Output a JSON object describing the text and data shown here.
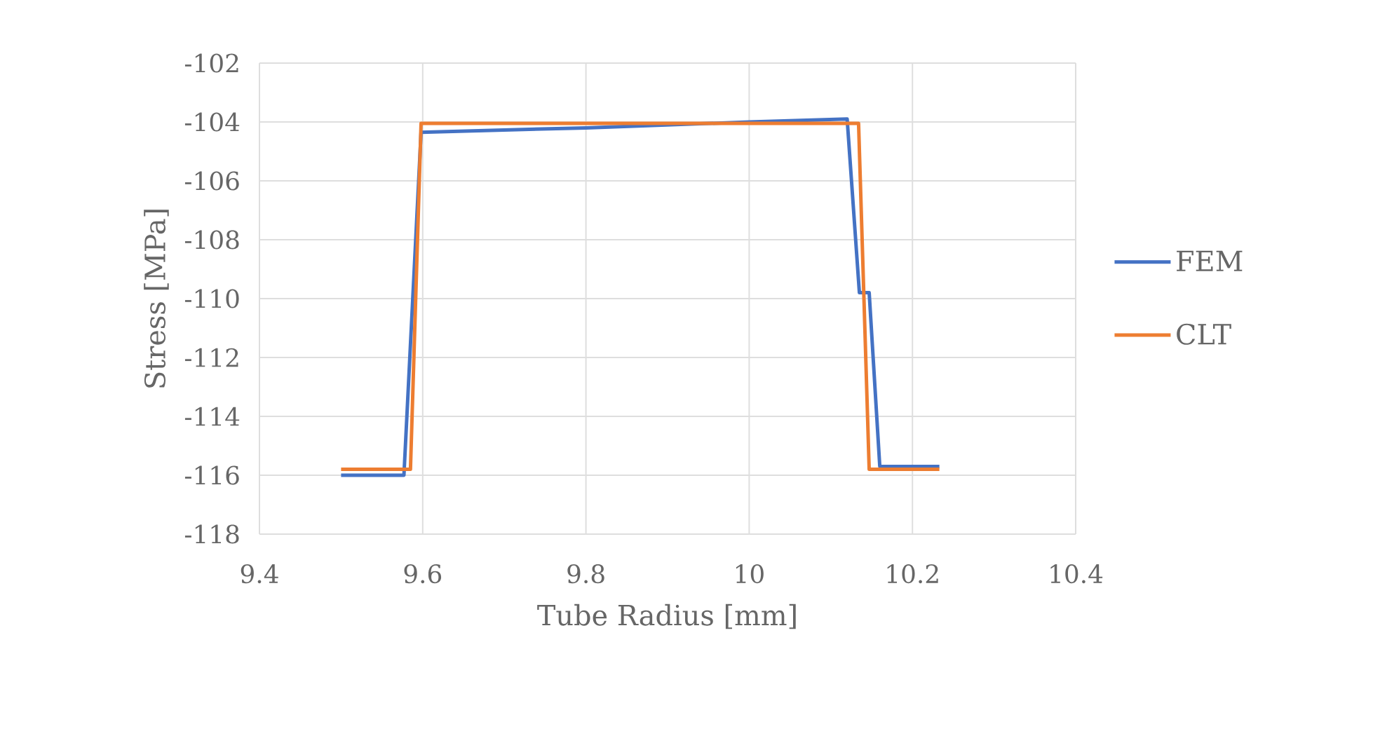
{
  "chart_data": {
    "type": "line",
    "xlabel": "Tube Radius [mm]",
    "ylabel": "Stress [MPa]",
    "xlim": [
      9.4,
      10.4
    ],
    "xticks": [
      9.4,
      9.6,
      9.8,
      10,
      10.2,
      10.4
    ],
    "ylim": [
      -118,
      -102
    ],
    "yticks": [
      -118,
      -116,
      -114,
      -112,
      -110,
      -108,
      -106,
      -104,
      -102
    ],
    "grid": true,
    "legend": "right",
    "marker": "none",
    "line_style": "solid",
    "series": [
      {
        "name": "FEM",
        "color": "#4472c4",
        "x": [
          9.5,
          9.577,
          9.598,
          9.8,
          10.0,
          10.12,
          10.135,
          10.147,
          10.16,
          10.233
        ],
        "values": [
          -116.0,
          -116.0,
          -104.35,
          -104.2,
          -104.0,
          -103.9,
          -109.8,
          -109.8,
          -115.7,
          -115.7
        ]
      },
      {
        "name": "CLT",
        "color": "#ed7d31",
        "x": [
          9.5,
          9.585,
          9.598,
          10.134,
          10.147,
          10.233
        ],
        "values": [
          -115.8,
          -115.8,
          -104.05,
          -104.05,
          -115.8,
          -115.8
        ]
      }
    ]
  }
}
